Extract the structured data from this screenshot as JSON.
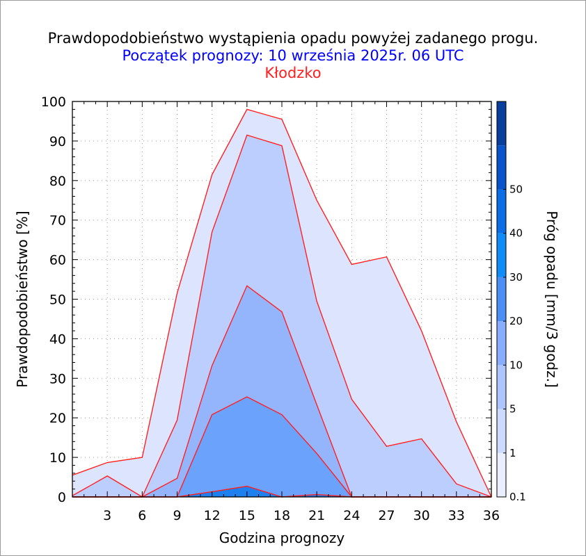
{
  "header": {
    "title": "Prawdopodobieństwo wystąpienia opadu powyżej zadanego progu.",
    "subtitle": "Początek prognozy: 10 września 2025r. 06 UTC",
    "location": "Kłodzko",
    "subtitle_color": "#0000ff",
    "location_color": "#ff2020"
  },
  "chart_data": {
    "type": "area",
    "title": "Prawdopodobieństwo wystąpienia opadu powyżej zadanego progu.",
    "xlabel": "Godzina prognozy",
    "ylabel": "Prawdopodobieństwo [%]",
    "colorbar_label": "Próg opadu [mm/3 godz.]",
    "xlim": [
      0,
      36
    ],
    "ylim": [
      0,
      100
    ],
    "x_ticks": [
      3,
      6,
      9,
      12,
      15,
      18,
      21,
      24,
      27,
      30,
      33,
      36
    ],
    "y_ticks": [
      0,
      10,
      20,
      30,
      40,
      50,
      60,
      70,
      80,
      90,
      100
    ],
    "x": [
      0,
      3,
      6,
      9,
      12,
      15,
      18,
      21,
      24,
      27,
      30,
      33,
      36
    ],
    "series": [
      {
        "threshold": 0.1,
        "color": "#dde4fd",
        "values": [
          5.5,
          8.7,
          10,
          51.5,
          81.5,
          98,
          95.5,
          75,
          58.8,
          60.7,
          42,
          19,
          0
        ]
      },
      {
        "threshold": 1,
        "color": "#bccefd",
        "values": [
          0.3,
          5.3,
          0,
          19.4,
          67,
          91.5,
          88.8,
          49.5,
          24.7,
          12.8,
          14.7,
          3.3,
          0
        ]
      },
      {
        "threshold": 5,
        "color": "#94b4fc",
        "values": [
          0,
          0,
          0,
          4.7,
          33.2,
          53.4,
          46.8,
          23.3,
          0,
          0,
          0,
          0,
          0
        ]
      },
      {
        "threshold": 10,
        "color": "#6aa2fc",
        "values": [
          0,
          0,
          0,
          0,
          20.8,
          25.3,
          20.8,
          11,
          0,
          0,
          0,
          0,
          0
        ]
      },
      {
        "threshold": 20,
        "color": "#1e7fee",
        "values": [
          0,
          0,
          0,
          0,
          1.3,
          2.7,
          0,
          0.6,
          0,
          0,
          0,
          0,
          0
        ]
      }
    ],
    "outline_color": "#ff2020",
    "colorbar": {
      "ticks": [
        "0.1",
        "1",
        "5",
        "10",
        "20",
        "30",
        "40",
        "50"
      ],
      "bands": [
        {
          "from": 0.1,
          "to": 1,
          "color": "#eaeefe"
        },
        {
          "from": 1,
          "to": 5,
          "color": "#ccdafd"
        },
        {
          "from": 5,
          "to": 10,
          "color": "#aec4fd"
        },
        {
          "from": 10,
          "to": 20,
          "color": "#8aacfc"
        },
        {
          "from": 20,
          "to": 30,
          "color": "#4b8ff4"
        },
        {
          "from": 30,
          "to": 40,
          "color": "#0f8cf8"
        },
        {
          "from": 40,
          "to": 50,
          "color": "#0b6ee6"
        },
        {
          "from": 50,
          "to": 60,
          "color": "#0a54c9"
        },
        {
          "from": 60,
          "to": 70,
          "color": "#0a3f9e"
        }
      ]
    }
  }
}
